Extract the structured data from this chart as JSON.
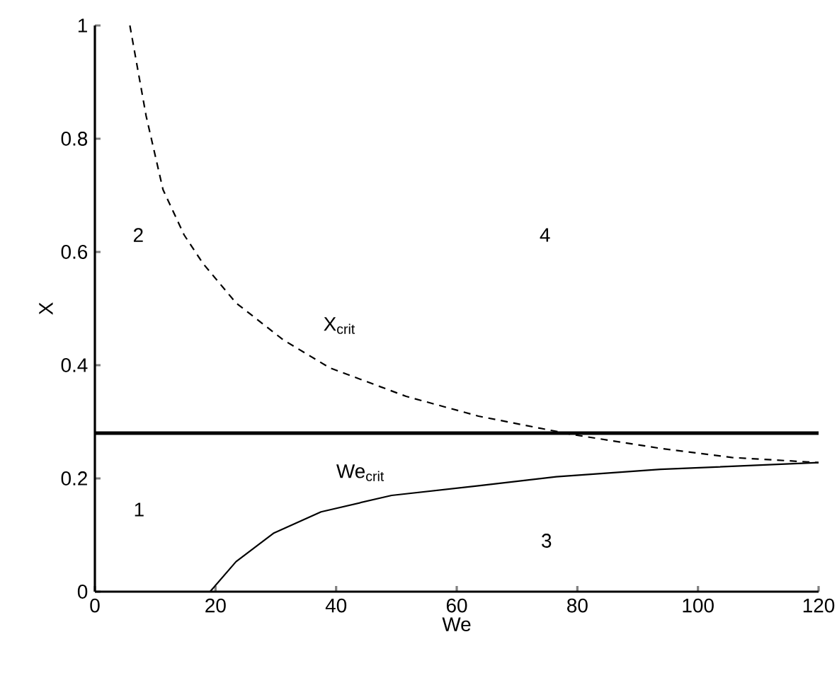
{
  "chart_data": {
    "type": "line",
    "xlabel": "We",
    "ylabel": "X",
    "xlim": [
      0,
      120
    ],
    "ylim": [
      0,
      1
    ],
    "xticks": [
      0,
      20,
      40,
      60,
      80,
      100,
      120
    ],
    "yticks": [
      0,
      0.2,
      0.4,
      0.6,
      0.8,
      1
    ],
    "grid": false,
    "marker": "none",
    "series": [
      {
        "color": "#000000",
        "line_style": "dashed",
        "x": [
          5.8,
          8.5,
          11.3,
          14.8,
          17.9,
          23.4,
          31.2,
          39,
          51.6,
          63.6,
          78.9,
          93.8,
          105.6,
          120
        ],
        "values": [
          1.0,
          0.84,
          0.71,
          0.63,
          0.58,
          0.51,
          0.445,
          0.395,
          0.345,
          0.31,
          0.278,
          0.253,
          0.237,
          0.228
        ]
      },
      {
        "color": "#000000",
        "line_style": "solid",
        "x": [
          19.1,
          23.4,
          29.6,
          37.5,
          49.2,
          63.6,
          76.5,
          93.8,
          120
        ],
        "values": [
          0,
          0.053,
          0.103,
          0.141,
          0.17,
          0.187,
          0.203,
          0.216,
          0.228
        ]
      }
    ],
    "ref_lines": [
      {
        "axis": "y",
        "value": 0.28,
        "color": "#000000",
        "line_style": "solid"
      }
    ],
    "annotations": [
      "1",
      "2",
      "3",
      "4",
      "X$_{crit}$",
      "We$_{crit}$"
    ]
  }
}
